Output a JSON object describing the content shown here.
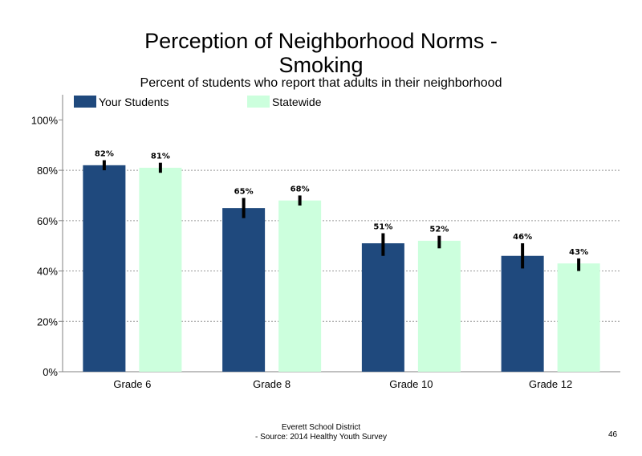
{
  "title_line1": "Perception of Neighborhood Norms -",
  "title_line2": "Smoking",
  "subtitle": "Percent of students who report that adults in their neighborhood",
  "footer_line1": "Everett School District",
  "footer_line2": "- Source: 2014 Healthy  Youth Survey",
  "page_number": "46",
  "colors": {
    "your_students": "#1f497d",
    "statewide": "#ccffdd"
  },
  "chart_data": {
    "type": "bar",
    "title": "Perception of Neighborhood Norms - Smoking",
    "subtitle": "Percent of students who report that adults in their neighborhood",
    "categories": [
      "Grade 6",
      "Grade 8",
      "Grade 10",
      "Grade 12"
    ],
    "series": [
      {
        "name": "Your Students",
        "values": [
          82,
          65,
          51,
          46
        ],
        "labels": [
          "82%",
          "65%",
          "51%",
          "46%"
        ],
        "error_low": [
          80,
          61,
          46,
          41
        ],
        "error_high": [
          84,
          69,
          55,
          51
        ]
      },
      {
        "name": "Statewide",
        "values": [
          81,
          68,
          52,
          43
        ],
        "labels": [
          "81%",
          "68%",
          "52%",
          "43%"
        ],
        "error_low": [
          79,
          66,
          49,
          40
        ],
        "error_high": [
          83,
          70,
          54,
          45
        ]
      }
    ],
    "yticks": [
      "0%",
      "20%",
      "40%",
      "60%",
      "80%",
      "100%"
    ],
    "ylim": [
      0,
      110
    ],
    "grid": "horizontal dotted",
    "legend": "top-left"
  }
}
